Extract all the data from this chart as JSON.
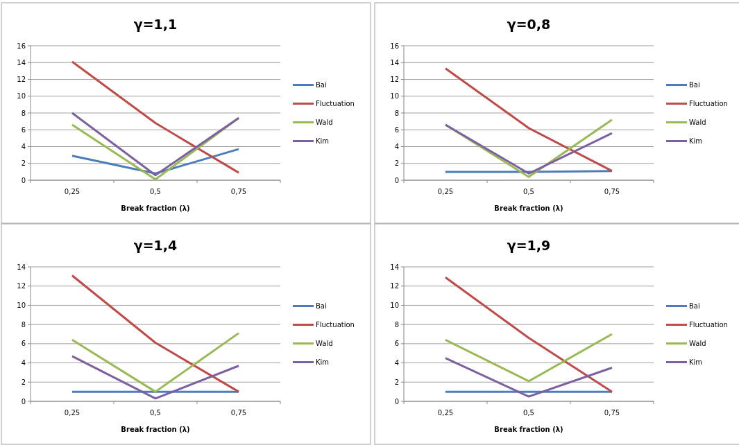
{
  "chart_data": [
    {
      "type": "line",
      "title": "γ=1,1",
      "xlabel": "Break fraction (λ)",
      "categories": [
        "0,25",
        "0,5",
        "0,75"
      ],
      "ylim": [
        0,
        16
      ],
      "yticks": [
        0,
        2,
        4,
        6,
        8,
        10,
        12,
        14,
        16
      ],
      "grid": "y",
      "legend": "right",
      "series": [
        {
          "name": "Bai",
          "color": "#4a7ebb",
          "values": [
            2.9,
            0.8,
            3.7
          ]
        },
        {
          "name": "Fluctuation",
          "color": "#be4b48",
          "values": [
            14.1,
            6.8,
            0.9
          ]
        },
        {
          "name": "Wald",
          "color": "#98b954",
          "values": [
            6.6,
            0.1,
            7.4
          ]
        },
        {
          "name": "Kim",
          "color": "#7d60a0",
          "values": [
            8.0,
            0.6,
            7.4
          ]
        }
      ]
    },
    {
      "type": "line",
      "title": "γ=0,8",
      "xlabel": "Break fraction (λ)",
      "categories": [
        "0,25",
        "0,5",
        "0,75"
      ],
      "ylim": [
        0,
        16
      ],
      "yticks": [
        0,
        2,
        4,
        6,
        8,
        10,
        12,
        14,
        16
      ],
      "grid": "y",
      "legend": "right",
      "series": [
        {
          "name": "Bai",
          "color": "#4a7ebb",
          "values": [
            1.0,
            1.0,
            1.1
          ]
        },
        {
          "name": "Fluctuation",
          "color": "#be4b48",
          "values": [
            13.3,
            6.2,
            1.1
          ]
        },
        {
          "name": "Wald",
          "color": "#98b954",
          "values": [
            6.6,
            0.4,
            7.2
          ]
        },
        {
          "name": "Kim",
          "color": "#7d60a0",
          "values": [
            6.6,
            0.8,
            5.6
          ]
        }
      ]
    },
    {
      "type": "line",
      "title": "γ=1,4",
      "xlabel": "Break fraction (λ)",
      "categories": [
        "0,25",
        "0,5",
        "0,75"
      ],
      "ylim": [
        0,
        14
      ],
      "yticks": [
        0,
        2,
        4,
        6,
        8,
        10,
        12,
        14
      ],
      "grid": "y",
      "legend": "right",
      "series": [
        {
          "name": "Bai",
          "color": "#4a7ebb",
          "values": [
            1.0,
            1.0,
            1.0
          ]
        },
        {
          "name": "Fluctuation",
          "color": "#be4b48",
          "values": [
            13.1,
            6.1,
            1.0
          ]
        },
        {
          "name": "Wald",
          "color": "#98b954",
          "values": [
            6.4,
            1.0,
            7.1
          ]
        },
        {
          "name": "Kim",
          "color": "#7d60a0",
          "values": [
            4.7,
            0.3,
            3.7
          ]
        }
      ]
    },
    {
      "type": "line",
      "title": "γ=1,9",
      "xlabel": "Break fraction (λ)",
      "categories": [
        "0,25",
        "0,5",
        "0,75"
      ],
      "ylim": [
        0,
        14
      ],
      "yticks": [
        0,
        2,
        4,
        6,
        8,
        10,
        12,
        14
      ],
      "grid": "y",
      "legend": "right",
      "series": [
        {
          "name": "Bai",
          "color": "#4a7ebb",
          "values": [
            1.0,
            1.0,
            1.0
          ]
        },
        {
          "name": "Fluctuation",
          "color": "#be4b48",
          "values": [
            12.9,
            6.6,
            1.0
          ]
        },
        {
          "name": "Wald",
          "color": "#98b954",
          "values": [
            6.4,
            2.1,
            7.0
          ]
        },
        {
          "name": "Kim",
          "color": "#7d60a0",
          "values": [
            4.5,
            0.5,
            3.5
          ]
        }
      ]
    }
  ]
}
